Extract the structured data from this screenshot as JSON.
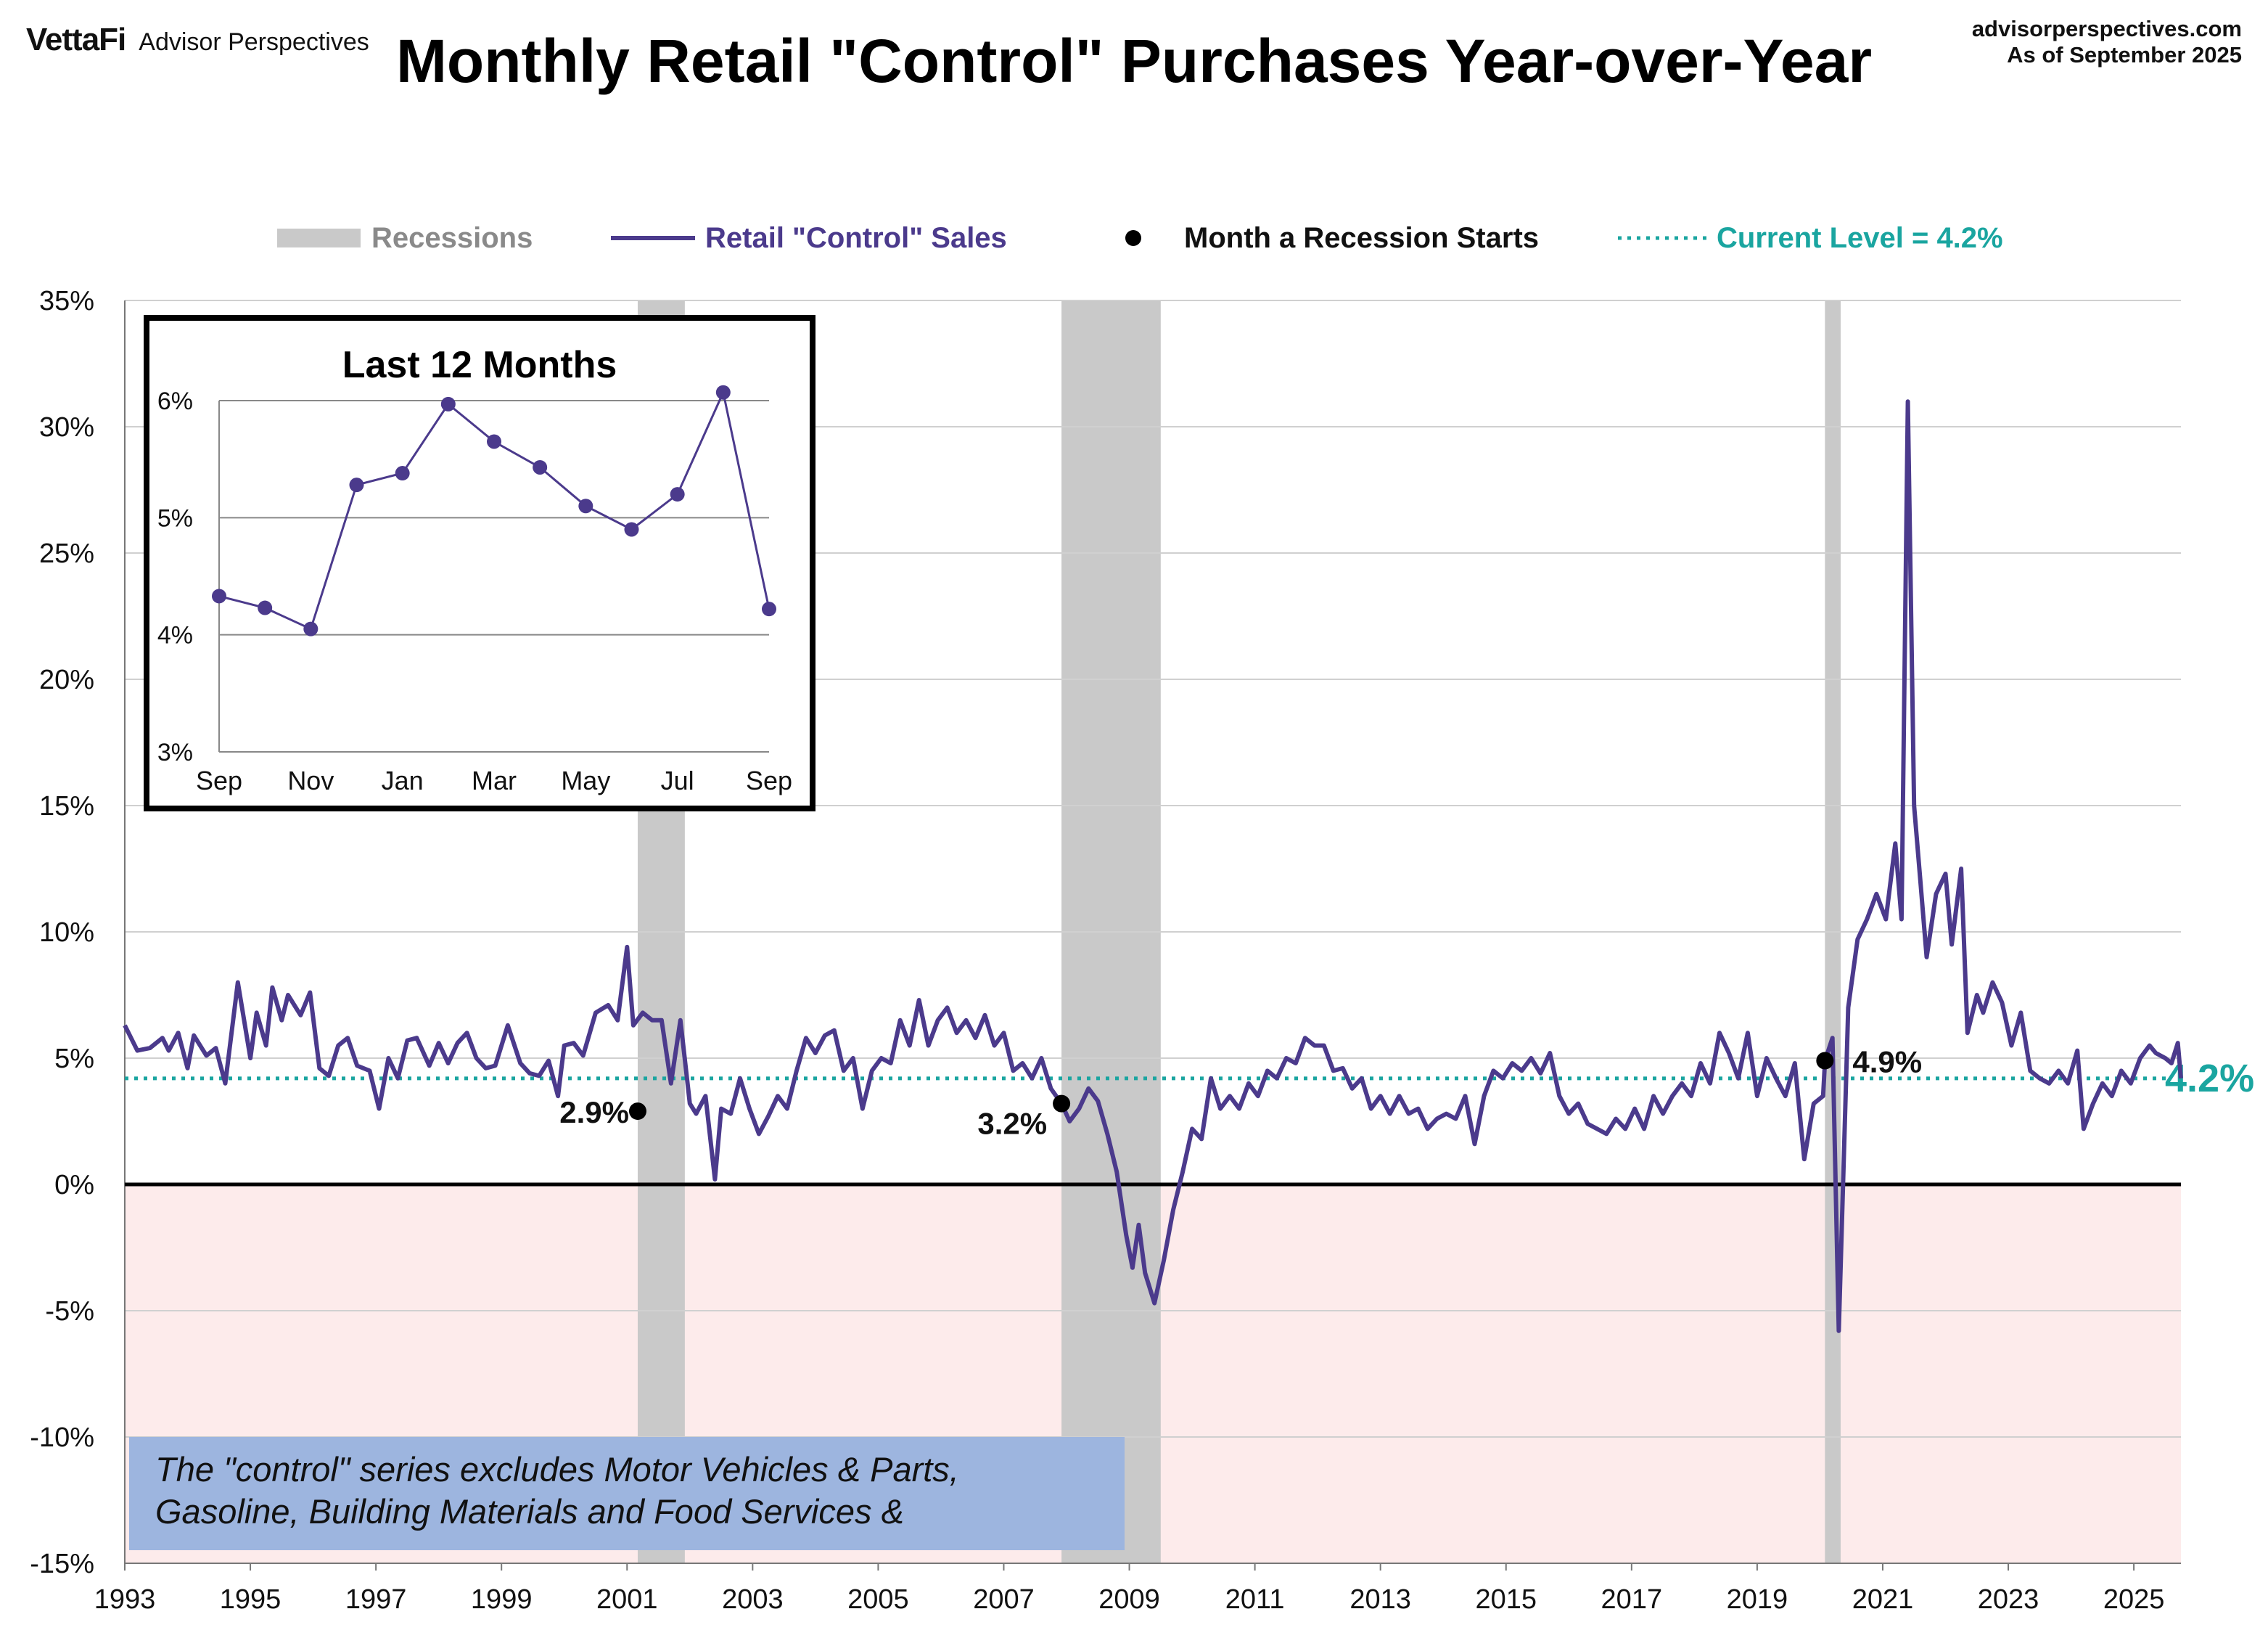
{
  "header": {
    "logo": "VettaFi",
    "brand": "Advisor Perspectives",
    "site": "advisorperspectives.com",
    "asof": "As of September 2025"
  },
  "note": "The \"control\" series excludes Motor Vehicles & Parts,\nGasoline, Building Materials and Food Services &",
  "colors": {
    "series": "#4b3a8c",
    "current": "#1aa5a0",
    "recession": "#c9c9c9",
    "negative": "#fdebeb",
    "note": "#9db5df"
  },
  "chart_data": [
    {
      "type": "line",
      "title": "Monthly Retail \"Control\" Purchases Year-over-Year",
      "xlabel": "",
      "ylabel": "",
      "ylim": [
        -15,
        35
      ],
      "xlim": [
        1993,
        2025.75
      ],
      "y_ticks": [
        "-15%",
        "-10%",
        "-5%",
        "0%",
        "5%",
        "10%",
        "15%",
        "20%",
        "25%",
        "30%",
        "35%"
      ],
      "x_ticks": [
        "1993",
        "1995",
        "1997",
        "1999",
        "2001",
        "2003",
        "2005",
        "2007",
        "2009",
        "2011",
        "2013",
        "2015",
        "2017",
        "2019",
        "2021",
        "2023",
        "2025"
      ],
      "grid": true,
      "legend_position": "top",
      "legend": {
        "recessions": "Recessions",
        "series": "Retail \"Control\" Sales",
        "start": "Month a Recession Starts",
        "current": "Current Level = 4.2%"
      },
      "recessions": [
        [
          2001.17,
          2001.92
        ],
        [
          2007.92,
          2009.5
        ],
        [
          2020.08,
          2020.33
        ]
      ],
      "current_level": 4.2,
      "current_label": "4.2%",
      "recession_starts": [
        {
          "x": 2001.17,
          "y": 2.9,
          "label": "2.9%"
        },
        {
          "x": 2007.92,
          "y": 3.2,
          "label": "3.2%"
        },
        {
          "x": 2020.08,
          "y": 4.9,
          "label": "4.9%"
        }
      ],
      "series": [
        {
          "points": [
            [
              1993.0,
              6.3
            ],
            [
              1993.2,
              5.3
            ],
            [
              1993.4,
              5.4
            ],
            [
              1993.6,
              5.8
            ],
            [
              1993.7,
              5.3
            ],
            [
              1993.85,
              6.0
            ],
            [
              1994.0,
              4.6
            ],
            [
              1994.1,
              5.9
            ],
            [
              1994.3,
              5.1
            ],
            [
              1994.45,
              5.4
            ],
            [
              1994.6,
              4.0
            ],
            [
              1994.8,
              8.0
            ],
            [
              1995.0,
              5.0
            ],
            [
              1995.1,
              6.8
            ],
            [
              1995.25,
              5.5
            ],
            [
              1995.35,
              7.8
            ],
            [
              1995.5,
              6.5
            ],
            [
              1995.6,
              7.5
            ],
            [
              1995.8,
              6.7
            ],
            [
              1995.95,
              7.6
            ],
            [
              1996.1,
              4.6
            ],
            [
              1996.25,
              4.3
            ],
            [
              1996.4,
              5.5
            ],
            [
              1996.55,
              5.8
            ],
            [
              1996.7,
              4.7
            ],
            [
              1996.9,
              4.5
            ],
            [
              1997.05,
              3.0
            ],
            [
              1997.2,
              5.0
            ],
            [
              1997.35,
              4.2
            ],
            [
              1997.5,
              5.7
            ],
            [
              1997.65,
              5.8
            ],
            [
              1997.85,
              4.7
            ],
            [
              1998.0,
              5.6
            ],
            [
              1998.15,
              4.8
            ],
            [
              1998.3,
              5.6
            ],
            [
              1998.45,
              6.0
            ],
            [
              1998.6,
              5.0
            ],
            [
              1998.75,
              4.6
            ],
            [
              1998.9,
              4.7
            ],
            [
              1999.1,
              6.3
            ],
            [
              1999.3,
              4.8
            ],
            [
              1999.45,
              4.4
            ],
            [
              1999.6,
              4.3
            ],
            [
              1999.75,
              4.9
            ],
            [
              1999.9,
              3.5
            ],
            [
              2000.0,
              5.5
            ],
            [
              2000.15,
              5.6
            ],
            [
              2000.3,
              5.1
            ],
            [
              2000.5,
              6.8
            ],
            [
              2000.7,
              7.1
            ],
            [
              2000.85,
              6.5
            ],
            [
              2001.0,
              9.4
            ],
            [
              2001.1,
              6.3
            ],
            [
              2001.25,
              6.8
            ],
            [
              2001.4,
              6.5
            ],
            [
              2001.55,
              6.5
            ],
            [
              2001.7,
              4.0
            ],
            [
              2001.85,
              6.5
            ],
            [
              2002.0,
              3.2
            ],
            [
              2002.1,
              2.8
            ],
            [
              2002.25,
              3.5
            ],
            [
              2002.4,
              0.2
            ],
            [
              2002.5,
              3.0
            ],
            [
              2002.65,
              2.8
            ],
            [
              2002.8,
              4.2
            ],
            [
              2002.95,
              3.0
            ],
            [
              2003.1,
              2.0
            ],
            [
              2003.25,
              2.7
            ],
            [
              2003.4,
              3.5
            ],
            [
              2003.55,
              3.0
            ],
            [
              2003.7,
              4.5
            ],
            [
              2003.85,
              5.8
            ],
            [
              2004.0,
              5.2
            ],
            [
              2004.15,
              5.9
            ],
            [
              2004.3,
              6.1
            ],
            [
              2004.45,
              4.5
            ],
            [
              2004.6,
              5.0
            ],
            [
              2004.75,
              3.0
            ],
            [
              2004.9,
              4.5
            ],
            [
              2005.05,
              5.0
            ],
            [
              2005.2,
              4.8
            ],
            [
              2005.35,
              6.5
            ],
            [
              2005.5,
              5.5
            ],
            [
              2005.65,
              7.3
            ],
            [
              2005.8,
              5.5
            ],
            [
              2005.95,
              6.5
            ],
            [
              2006.1,
              7.0
            ],
            [
              2006.25,
              6.0
            ],
            [
              2006.4,
              6.5
            ],
            [
              2006.55,
              5.8
            ],
            [
              2006.7,
              6.7
            ],
            [
              2006.85,
              5.5
            ],
            [
              2007.0,
              6.0
            ],
            [
              2007.15,
              4.5
            ],
            [
              2007.3,
              4.8
            ],
            [
              2007.45,
              4.2
            ],
            [
              2007.6,
              5.0
            ],
            [
              2007.75,
              3.8
            ],
            [
              2007.92,
              3.2
            ],
            [
              2008.05,
              2.5
            ],
            [
              2008.2,
              3.0
            ],
            [
              2008.35,
              3.8
            ],
            [
              2008.5,
              3.3
            ],
            [
              2008.65,
              2.0
            ],
            [
              2008.8,
              0.5
            ],
            [
              2008.95,
              -2.0
            ],
            [
              2009.05,
              -3.3
            ],
            [
              2009.15,
              -1.6
            ],
            [
              2009.25,
              -3.5
            ],
            [
              2009.4,
              -4.7
            ],
            [
              2009.55,
              -3.0
            ],
            [
              2009.7,
              -1.0
            ],
            [
              2009.85,
              0.5
            ],
            [
              2010.0,
              2.2
            ],
            [
              2010.15,
              1.8
            ],
            [
              2010.3,
              4.2
            ],
            [
              2010.45,
              3.0
            ],
            [
              2010.6,
              3.5
            ],
            [
              2010.75,
              3.0
            ],
            [
              2010.9,
              4.0
            ],
            [
              2011.05,
              3.5
            ],
            [
              2011.2,
              4.5
            ],
            [
              2011.35,
              4.2
            ],
            [
              2011.5,
              5.0
            ],
            [
              2011.65,
              4.8
            ],
            [
              2011.8,
              5.8
            ],
            [
              2011.95,
              5.5
            ],
            [
              2012.1,
              5.5
            ],
            [
              2012.25,
              4.5
            ],
            [
              2012.4,
              4.6
            ],
            [
              2012.55,
              3.8
            ],
            [
              2012.7,
              4.2
            ],
            [
              2012.85,
              3.0
            ],
            [
              2013.0,
              3.5
            ],
            [
              2013.15,
              2.8
            ],
            [
              2013.3,
              3.5
            ],
            [
              2013.45,
              2.8
            ],
            [
              2013.6,
              3.0
            ],
            [
              2013.75,
              2.2
            ],
            [
              2013.9,
              2.6
            ],
            [
              2014.05,
              2.8
            ],
            [
              2014.2,
              2.6
            ],
            [
              2014.35,
              3.5
            ],
            [
              2014.5,
              1.6
            ],
            [
              2014.65,
              3.5
            ],
            [
              2014.8,
              4.5
            ],
            [
              2014.95,
              4.2
            ],
            [
              2015.1,
              4.8
            ],
            [
              2015.25,
              4.5
            ],
            [
              2015.4,
              5.0
            ],
            [
              2015.55,
              4.4
            ],
            [
              2015.7,
              5.2
            ],
            [
              2015.85,
              3.5
            ],
            [
              2016.0,
              2.8
            ],
            [
              2016.15,
              3.2
            ],
            [
              2016.3,
              2.4
            ],
            [
              2016.45,
              2.2
            ],
            [
              2016.6,
              2.0
            ],
            [
              2016.75,
              2.6
            ],
            [
              2016.9,
              2.2
            ],
            [
              2017.05,
              3.0
            ],
            [
              2017.2,
              2.2
            ],
            [
              2017.35,
              3.5
            ],
            [
              2017.5,
              2.8
            ],
            [
              2017.65,
              3.5
            ],
            [
              2017.8,
              4.0
            ],
            [
              2017.95,
              3.5
            ],
            [
              2018.1,
              4.8
            ],
            [
              2018.25,
              4.0
            ],
            [
              2018.4,
              6.0
            ],
            [
              2018.55,
              5.2
            ],
            [
              2018.7,
              4.2
            ],
            [
              2018.85,
              6.0
            ],
            [
              2019.0,
              3.5
            ],
            [
              2019.15,
              5.0
            ],
            [
              2019.3,
              4.2
            ],
            [
              2019.45,
              3.5
            ],
            [
              2019.6,
              4.8
            ],
            [
              2019.75,
              1.0
            ],
            [
              2019.9,
              3.2
            ],
            [
              2020.05,
              3.5
            ],
            [
              2020.08,
              4.9
            ],
            [
              2020.2,
              5.8
            ],
            [
              2020.3,
              -5.8
            ],
            [
              2020.45,
              7.0
            ],
            [
              2020.6,
              9.7
            ],
            [
              2020.75,
              10.5
            ],
            [
              2020.9,
              11.5
            ],
            [
              2021.05,
              10.5
            ],
            [
              2021.2,
              13.5
            ],
            [
              2021.3,
              10.5
            ],
            [
              2021.4,
              31.0
            ],
            [
              2021.5,
              15.0
            ],
            [
              2021.6,
              12.0
            ],
            [
              2021.7,
              9.0
            ],
            [
              2021.85,
              11.5
            ],
            [
              2022.0,
              12.3
            ],
            [
              2022.1,
              9.5
            ],
            [
              2022.25,
              12.5
            ],
            [
              2022.35,
              6.0
            ],
            [
              2022.5,
              7.5
            ],
            [
              2022.6,
              6.8
            ],
            [
              2022.75,
              8.0
            ],
            [
              2022.9,
              7.2
            ],
            [
              2023.05,
              5.5
            ],
            [
              2023.2,
              6.8
            ],
            [
              2023.35,
              4.5
            ],
            [
              2023.5,
              4.2
            ],
            [
              2023.65,
              4.0
            ],
            [
              2023.8,
              4.5
            ],
            [
              2023.95,
              4.0
            ],
            [
              2024.1,
              5.3
            ],
            [
              2024.2,
              2.2
            ],
            [
              2024.35,
              3.2
            ],
            [
              2024.5,
              4.0
            ],
            [
              2024.65,
              3.5
            ],
            [
              2024.8,
              4.5
            ],
            [
              2024.95,
              4.0
            ],
            [
              2025.1,
              5.0
            ],
            [
              2025.25,
              5.5
            ],
            [
              2025.35,
              5.2
            ],
            [
              2025.5,
              5.0
            ],
            [
              2025.6,
              4.8
            ],
            [
              2025.7,
              5.6
            ],
            [
              2025.75,
              4.2
            ]
          ]
        }
      ]
    },
    {
      "type": "line",
      "title": "Last 12 Months",
      "ylim": [
        3,
        6
      ],
      "y_ticks": [
        "3%",
        "4%",
        "5%",
        "6%"
      ],
      "categories": [
        "Sep",
        "Oct",
        "Nov",
        "Dec",
        "Jan",
        "Feb",
        "Mar",
        "Apr",
        "May",
        "Jun",
        "Jul",
        "Aug",
        "Sep"
      ],
      "x_tick_labels": [
        "Sep",
        "Nov",
        "Jan",
        "Mar",
        "May",
        "Jul",
        "Sep"
      ],
      "values": [
        4.33,
        4.23,
        4.05,
        5.28,
        5.38,
        5.97,
        5.65,
        5.43,
        5.1,
        4.9,
        5.2,
        6.07,
        4.22
      ],
      "grid": true
    }
  ]
}
